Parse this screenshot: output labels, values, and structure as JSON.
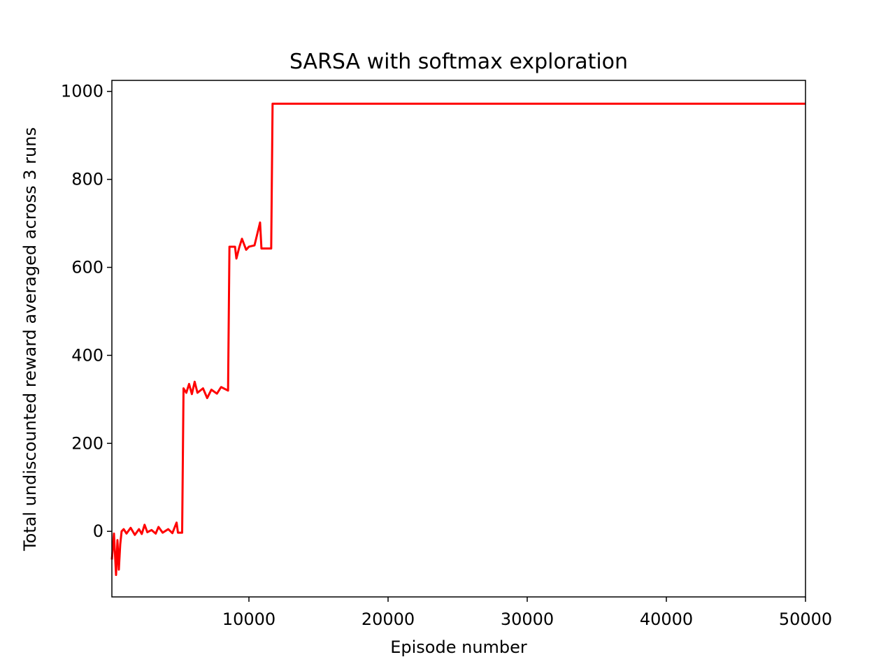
{
  "chart_data": {
    "type": "line",
    "title": "SARSA with softmax exploration",
    "x_label": "Episode number",
    "y_label": "Total undiscounted reward averaged across 3 runs",
    "x": [
      150,
      300,
      450,
      550,
      650,
      750,
      850,
      1000,
      1200,
      1500,
      1800,
      2100,
      2300,
      2500,
      2700,
      3000,
      3300,
      3500,
      3800,
      4200,
      4500,
      4800,
      4900,
      5200,
      5300,
      5500,
      5700,
      5900,
      6100,
      6300,
      6700,
      7000,
      7300,
      7700,
      8000,
      8500,
      8600,
      9000,
      9100,
      9300,
      9500,
      9800,
      10000,
      10400,
      10800,
      10900,
      11600,
      11700,
      50000
    ],
    "series": [
      {
        "name": "SARSA",
        "color": "#ff0000",
        "values": [
          -64,
          -5,
          -99,
          -20,
          -87,
          -30,
          0,
          5,
          -5,
          8,
          -8,
          5,
          -6,
          15,
          -2,
          3,
          -5,
          10,
          -3,
          5,
          -4,
          20,
          -3,
          -3,
          325,
          315,
          335,
          312,
          340,
          315,
          325,
          303,
          322,
          313,
          328,
          320,
          647,
          647,
          620,
          645,
          665,
          640,
          647,
          650,
          702,
          643,
          643,
          972,
          972
        ]
      }
    ],
    "xlim": [
      150,
      50000
    ],
    "xticks": [
      10000,
      20000,
      30000,
      40000,
      50000
    ],
    "ylim": [
      -149,
      1025
    ],
    "yticks": [
      0,
      200,
      400,
      600,
      800,
      1000
    ],
    "grid": false
  }
}
